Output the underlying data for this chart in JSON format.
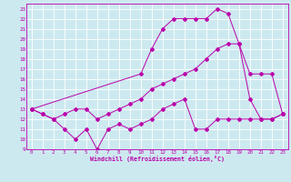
{
  "xlabel": "Windchill (Refroidissement éolien,°C)",
  "background_color": "#cde9f0",
  "grid_color": "#ffffff",
  "line_color": "#bb00aa",
  "xlim": [
    -0.5,
    23.5
  ],
  "ylim": [
    9,
    23.5
  ],
  "yticks": [
    9,
    10,
    11,
    12,
    13,
    14,
    15,
    16,
    17,
    18,
    19,
    20,
    21,
    22,
    23
  ],
  "xticks": [
    0,
    1,
    2,
    3,
    4,
    5,
    6,
    7,
    8,
    9,
    10,
    11,
    12,
    13,
    14,
    15,
    16,
    17,
    18,
    19,
    20,
    21,
    22,
    23
  ],
  "line1_x": [
    0,
    1,
    2,
    3,
    4,
    5,
    6,
    7,
    8,
    9,
    10,
    11,
    12,
    13,
    14,
    15,
    16,
    17,
    18,
    19,
    20,
    21,
    22,
    23
  ],
  "line1_y": [
    13,
    12.5,
    12,
    11,
    10,
    11,
    9,
    11,
    11.5,
    11,
    11.5,
    12,
    13,
    13.5,
    14,
    11,
    11,
    12,
    12,
    12,
    12,
    12,
    12,
    12.5
  ],
  "line2_x": [
    0,
    1,
    2,
    3,
    4,
    5,
    6,
    7,
    8,
    9,
    10,
    11,
    12,
    13,
    14,
    15,
    16,
    17,
    18,
    19,
    20,
    21,
    22,
    23
  ],
  "line2_y": [
    13,
    12.5,
    12,
    12.5,
    13,
    13,
    12,
    12.5,
    13,
    13.5,
    14,
    15,
    15.5,
    16,
    16.5,
    17,
    18,
    19,
    19.5,
    19.5,
    16.5,
    16.5,
    16.5,
    12.5
  ],
  "line3_x": [
    0,
    10,
    11,
    12,
    13,
    14,
    15,
    16,
    17,
    18,
    19,
    20,
    21,
    22,
    23
  ],
  "line3_y": [
    13,
    16.5,
    19,
    21,
    22,
    22,
    22,
    22,
    23,
    22.5,
    19.5,
    14,
    12,
    12,
    12.5
  ]
}
